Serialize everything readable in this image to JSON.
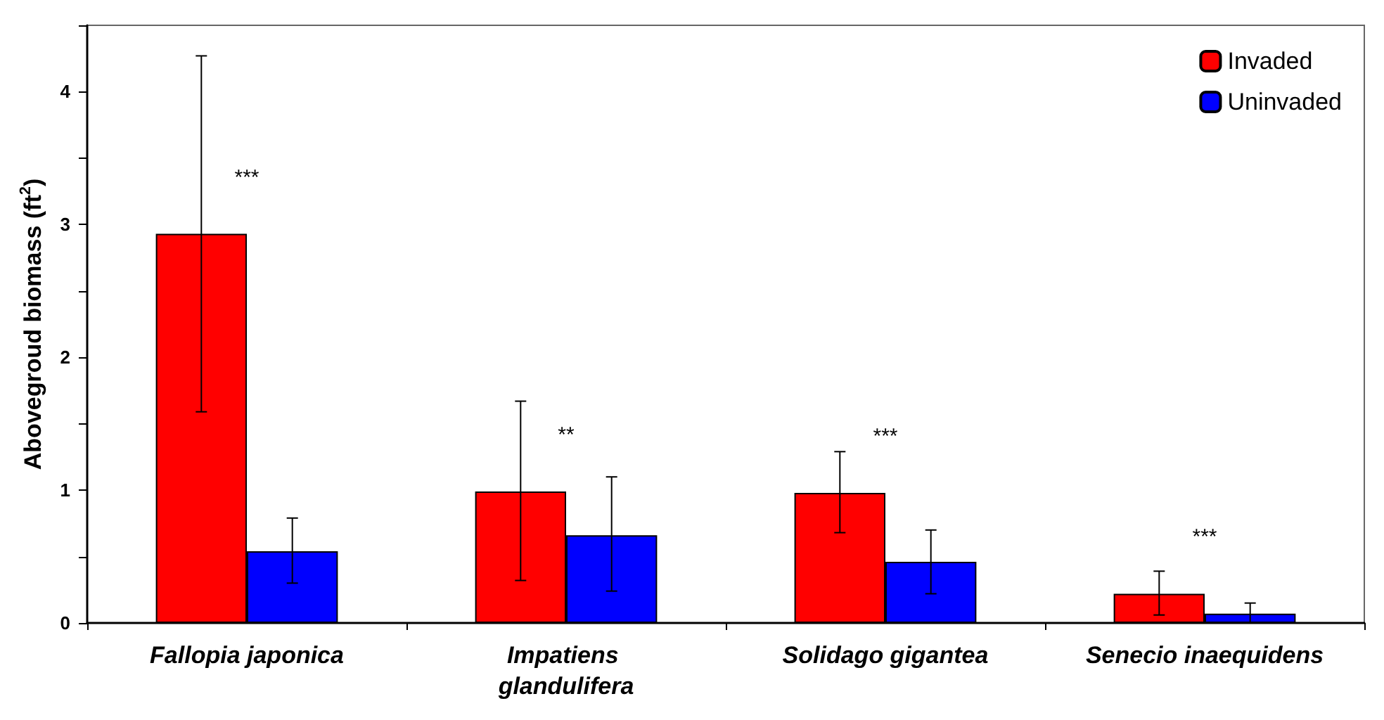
{
  "chart_data": {
    "type": "bar",
    "ylabel": "Abovegroud biomass (ft$^{2}$)",
    "categories": [
      "Fallopia japonica",
      "Impatiens glandulifera",
      "Solidago gigantea",
      "Senecio inaequidens"
    ],
    "series": [
      {
        "name": "Invaded",
        "color": "#ff0000",
        "values": [
          2.93,
          0.99,
          0.98,
          0.22
        ],
        "errors": [
          [
            1.59,
            4.27
          ],
          [
            0.32,
            1.67
          ],
          [
            0.68,
            1.29
          ],
          [
            0.06,
            0.39
          ]
        ]
      },
      {
        "name": "Uninvaded",
        "color": "#0000ff",
        "values": [
          0.54,
          0.66,
          0.46,
          0.07
        ],
        "errors": [
          [
            0.3,
            0.79
          ],
          [
            0.24,
            1.1
          ],
          [
            0.22,
            0.7
          ],
          [
            0.0,
            0.15
          ]
        ]
      }
    ],
    "ylim": [
      0,
      4.5
    ],
    "yticks": [
      0,
      {
        "value": 0.5,
        "label": null
      },
      1,
      {
        "value": 1.5,
        "label": null
      },
      2,
      {
        "value": 2.5,
        "label": null
      },
      3,
      {
        "value": 3.5,
        "label": null
      },
      4,
      {
        "value": 4.5,
        "label": null
      }
    ],
    "annotations": [
      "***",
      "**",
      "***",
      "***"
    ],
    "legend": "top right",
    "grid": false
  }
}
